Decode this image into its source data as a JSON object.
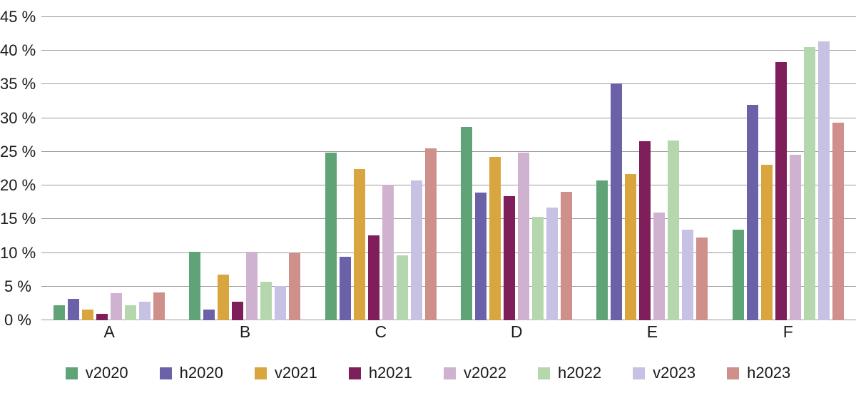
{
  "chart_data": {
    "type": "bar",
    "title": "",
    "xlabel": "",
    "ylabel": "",
    "ylim": [
      0,
      45
    ],
    "ytick_step": 5,
    "yticks": [
      "0 %",
      "5 %",
      "10 %",
      "15 %",
      "20 %",
      "25 %",
      "30 %",
      "35 %",
      "40 %",
      "45 %"
    ],
    "grid": true,
    "legend_position": "bottom",
    "categories": [
      "A",
      "B",
      "C",
      "D",
      "E",
      "F"
    ],
    "series": [
      {
        "name": "v2020",
        "color": "#5fa376",
        "values": [
          2.2,
          10.2,
          24.9,
          28.7,
          20.8,
          13.4
        ]
      },
      {
        "name": "h2020",
        "color": "#6a61a8",
        "values": [
          3.2,
          1.6,
          9.4,
          19.0,
          35.2,
          32.0
        ]
      },
      {
        "name": "v2021",
        "color": "#d9a53f",
        "values": [
          1.6,
          6.8,
          22.5,
          24.3,
          21.7,
          23.1
        ]
      },
      {
        "name": "h2021",
        "color": "#7e1e5b",
        "values": [
          1.0,
          2.8,
          12.6,
          18.4,
          26.6,
          38.3
        ]
      },
      {
        "name": "v2022",
        "color": "#cfb2d0",
        "values": [
          4.0,
          10.2,
          20.1,
          24.9,
          16.0,
          24.6
        ]
      },
      {
        "name": "h2022",
        "color": "#b5d7ad",
        "values": [
          2.2,
          5.7,
          9.6,
          15.4,
          26.7,
          40.6
        ]
      },
      {
        "name": "v2023",
        "color": "#c7c1e3",
        "values": [
          2.8,
          5.1,
          20.8,
          16.7,
          13.5,
          41.4
        ]
      },
      {
        "name": "h2023",
        "color": "#cf8f8b",
        "values": [
          4.1,
          10.0,
          25.5,
          19.1,
          12.3,
          29.3
        ]
      }
    ]
  },
  "colors": {
    "gridline": "#9b9b9b",
    "text": "#1a1a1a",
    "background": "#ffffff"
  }
}
